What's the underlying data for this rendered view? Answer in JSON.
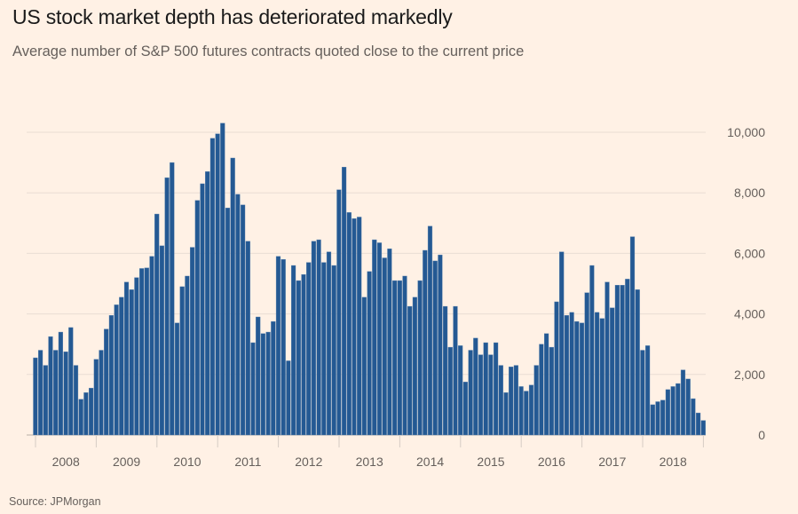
{
  "chart_data": {
    "type": "bar",
    "title": "US stock market depth has deteriorated markedly",
    "subtitle": "Average number of S&P 500 futures contracts quoted close to the current price",
    "source": "Source: JPMorgan",
    "xlabel": "",
    "ylabel": "",
    "frequency": "monthly",
    "start": "2008-01",
    "ylim": [
      0,
      10000
    ],
    "yticks": [
      0,
      2000,
      4000,
      6000,
      8000,
      10000
    ],
    "ytick_labels": [
      "0",
      "2,000",
      "4,000",
      "6,000",
      "8,000",
      "10,000"
    ],
    "xtick_labels": [
      "2008",
      "2009",
      "2010",
      "2011",
      "2012",
      "2013",
      "2014",
      "2015",
      "2016",
      "2017",
      "2018"
    ],
    "grid": true,
    "bar_color": "#245993",
    "values": [
      2550,
      2800,
      2300,
      3250,
      2800,
      3400,
      2750,
      3550,
      2300,
      1180,
      1400,
      1550,
      2500,
      2800,
      3500,
      3950,
      4300,
      4550,
      5050,
      4800,
      5200,
      5500,
      5520,
      5900,
      7300,
      6250,
      8500,
      9000,
      3700,
      4900,
      5250,
      6200,
      7750,
      8300,
      8700,
      9800,
      9950,
      10300,
      7500,
      9150,
      7950,
      7600,
      6400,
      3050,
      3900,
      3350,
      3400,
      3750,
      5900,
      5800,
      2450,
      5600,
      5100,
      5300,
      5700,
      6400,
      6450,
      5700,
      6050,
      5600,
      8100,
      8850,
      7350,
      7150,
      7200,
      4550,
      5400,
      6450,
      6350,
      5850,
      6150,
      5100,
      5100,
      5250,
      4250,
      4550,
      5100,
      6100,
      6900,
      5750,
      5950,
      4250,
      2900,
      4250,
      2950,
      1750,
      2800,
      3200,
      2650,
      3050,
      2650,
      3050,
      2300,
      1400,
      2250,
      2300,
      1600,
      1450,
      1650,
      2300,
      3000,
      3350,
      2900,
      4400,
      6050,
      3950,
      4050,
      3750,
      3700,
      4700,
      5600,
      4050,
      3850,
      5050,
      4200,
      4950,
      4950,
      5150,
      6550,
      4800,
      2800,
      2950,
      1000,
      1100,
      1150,
      1500,
      1600,
      1700,
      2150,
      1850,
      1200,
      730,
      480
    ]
  }
}
